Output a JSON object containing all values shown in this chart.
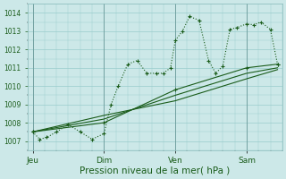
{
  "background_color": "#cce8e8",
  "grid_color": "#99cccc",
  "line_color": "#1a5c1a",
  "xlabel": "Pression niveau de la mer( hPa )",
  "xlabel_fontsize": 7.5,
  "ylim": [
    1006.5,
    1014.5
  ],
  "yticks": [
    1007,
    1008,
    1009,
    1010,
    1011,
    1012,
    1013,
    1014
  ],
  "xtick_labels": [
    "Jeu",
    "Dim",
    "Ven",
    "Sam"
  ],
  "xtick_positions": [
    0,
    30,
    60,
    90
  ],
  "vline_positions": [
    0,
    30,
    60,
    90
  ],
  "xlim": [
    -2,
    105
  ],
  "series1_x": [
    0,
    3,
    6,
    10,
    15,
    20,
    25,
    30,
    33,
    36,
    40,
    44,
    48,
    52,
    55,
    58,
    60,
    63,
    66,
    70,
    74,
    77,
    80,
    83,
    86,
    90,
    93,
    96,
    100,
    103
  ],
  "series1_y": [
    1007.5,
    1007.1,
    1007.2,
    1007.5,
    1007.9,
    1007.5,
    1007.1,
    1007.4,
    1009.0,
    1010.0,
    1011.2,
    1011.4,
    1010.7,
    1010.7,
    1010.7,
    1011.0,
    1012.5,
    1013.0,
    1013.8,
    1013.6,
    1011.4,
    1010.7,
    1011.1,
    1013.1,
    1013.2,
    1013.4,
    1013.35,
    1013.5,
    1013.1,
    1011.2
  ],
  "series2_x": [
    0,
    30,
    60,
    90,
    103
  ],
  "series2_y": [
    1007.5,
    1008.0,
    1009.8,
    1011.0,
    1011.2
  ],
  "series3_x": [
    0,
    30,
    60,
    90,
    103
  ],
  "series3_y": [
    1007.5,
    1008.2,
    1009.5,
    1010.7,
    1011.0
  ],
  "series4_x": [
    0,
    30,
    60,
    90,
    103
  ],
  "series4_y": [
    1007.5,
    1008.4,
    1009.2,
    1010.4,
    1010.9
  ]
}
